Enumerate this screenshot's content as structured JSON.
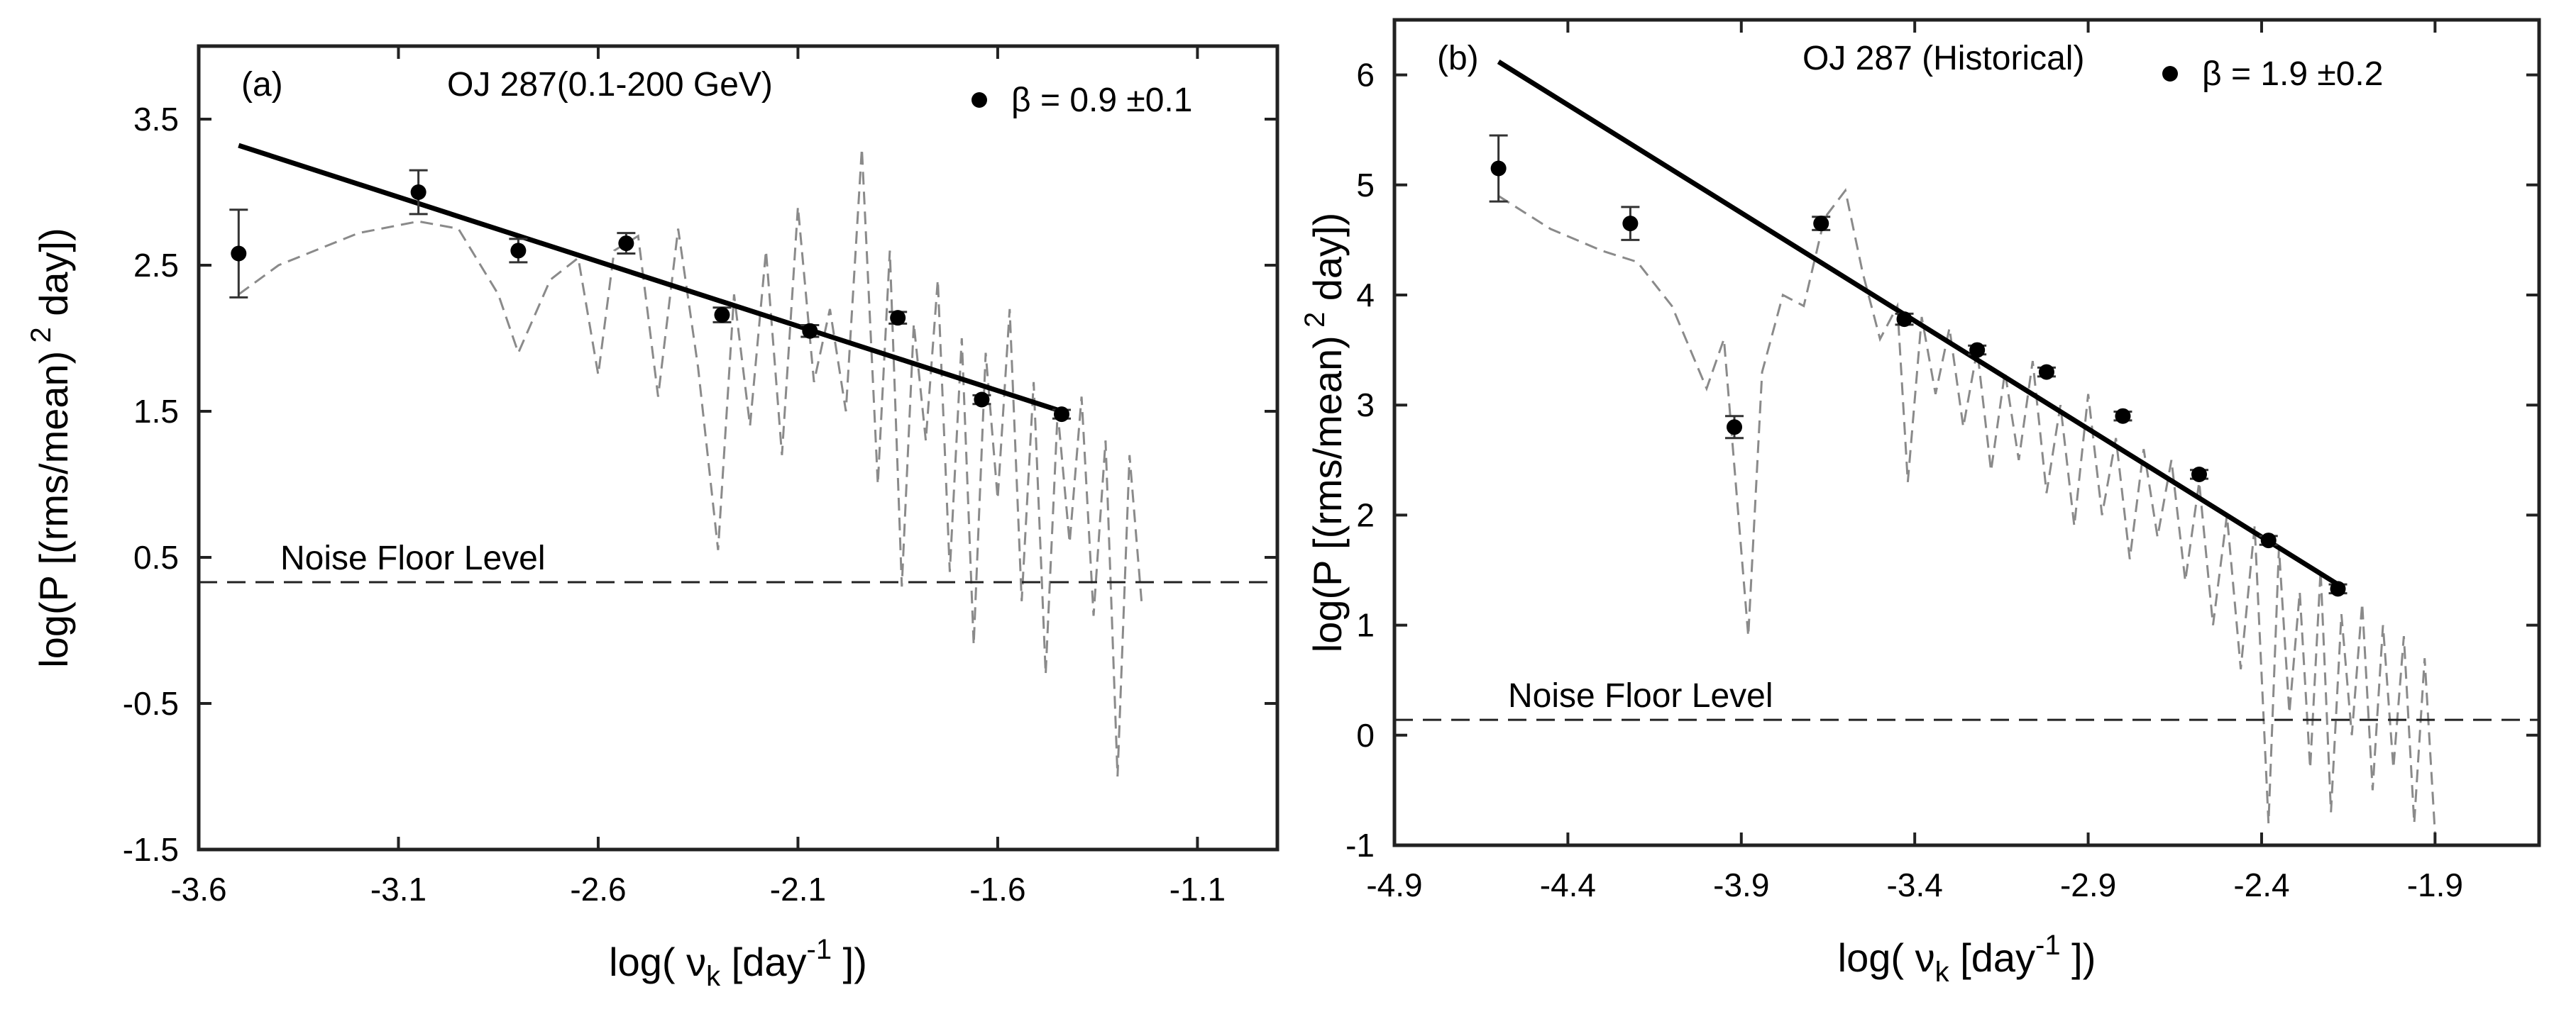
{
  "chart_data": [
    {
      "type": "scatter",
      "panel_label": "(a)",
      "title": "OJ 287(0.1-200 GeV)",
      "legend": {
        "beta_label": "β = 0.9  ±0.1",
        "placement": "top-right"
      },
      "xlabel": "log( ν",
      "xlabel_sub": "k",
      "xlabel_unit": " [day",
      "xlabel_exp": "-1",
      "xlabel_close": " ])",
      "ylabel": "log(P [(rms/mean)",
      "ylabel_exp": "2",
      "ylabel_close": " day])",
      "xlim": [
        -3.6,
        -0.9
      ],
      "ylim": [
        -1.5,
        4.0
      ],
      "xticks": [
        "-3.6",
        "-3.1",
        "-2.6",
        "-2.1",
        "-1.6",
        "-1.1"
      ],
      "yticks": [
        "-1.5",
        "-0.5",
        "0.5",
        "1.5",
        "2.5",
        "3.5"
      ],
      "points": {
        "x": [
          -3.5,
          -3.05,
          -2.8,
          -2.53,
          -2.29,
          -2.07,
          -1.85,
          -1.64,
          -1.44
        ],
        "y": [
          2.58,
          3.0,
          2.6,
          2.65,
          2.16,
          2.05,
          2.14,
          1.58,
          1.48
        ],
        "err": [
          0.3,
          0.15,
          0.08,
          0.07,
          0.05,
          0.04,
          0.04,
          0.03,
          0.03
        ]
      },
      "fit_line": {
        "x": [
          -3.5,
          -1.44
        ],
        "y": [
          3.32,
          1.5
        ]
      },
      "noise_floor": {
        "label": "Noise Floor Level",
        "y": 0.33
      },
      "simulated_psd": {
        "x": [
          -3.5,
          -3.4,
          -3.2,
          -3.05,
          -2.95,
          -2.85,
          -2.8,
          -2.72,
          -2.65,
          -2.6,
          -2.56,
          -2.5,
          -2.45,
          -2.4,
          -2.35,
          -2.3,
          -2.26,
          -2.22,
          -2.18,
          -2.14,
          -2.1,
          -2.06,
          -2.02,
          -1.98,
          -1.94,
          -1.9,
          -1.87,
          -1.84,
          -1.81,
          -1.78,
          -1.75,
          -1.72,
          -1.69,
          -1.66,
          -1.63,
          -1.6,
          -1.57,
          -1.54,
          -1.51,
          -1.48,
          -1.45,
          -1.42,
          -1.39,
          -1.36,
          -1.33,
          -1.3,
          -1.27,
          -1.24
        ],
        "y": [
          2.3,
          2.5,
          2.72,
          2.8,
          2.75,
          2.3,
          1.9,
          2.4,
          2.55,
          1.75,
          2.6,
          2.7,
          1.6,
          2.75,
          1.8,
          0.55,
          2.3,
          1.4,
          2.6,
          1.2,
          2.9,
          1.7,
          2.2,
          1.5,
          3.3,
          1.0,
          2.6,
          0.3,
          2.1,
          1.3,
          2.4,
          0.4,
          2.0,
          -0.1,
          1.9,
          0.9,
          2.2,
          0.2,
          1.7,
          -0.3,
          1.5,
          0.6,
          1.6,
          0.1,
          1.3,
          -1.0,
          1.2,
          0.2
        ]
      }
    },
    {
      "type": "scatter",
      "panel_label": "(b)",
      "title": "OJ 287 (Historical)",
      "legend": {
        "beta_label": "β = 1.9  ±0.2",
        "placement": "top-right"
      },
      "xlabel": "log( ν",
      "xlabel_sub": "k",
      "xlabel_unit": " [day",
      "xlabel_exp": "-1",
      "xlabel_close": " ])",
      "ylabel": "log(P [(rms/mean)",
      "ylabel_exp": "2",
      "ylabel_close": " day])",
      "xlim": [
        -4.9,
        -1.6
      ],
      "ylim": [
        -1,
        6.5
      ],
      "xticks": [
        "-4.9",
        "-4.4",
        "-3.9",
        "-3.4",
        "-2.9",
        "-2.4",
        "-1.9"
      ],
      "yticks": [
        "-1",
        "0",
        "1",
        "2",
        "3",
        "4",
        "5",
        "6"
      ],
      "points": {
        "x": [
          -4.6,
          -4.22,
          -3.92,
          -3.67,
          -3.43,
          -3.22,
          -3.02,
          -2.8,
          -2.58,
          -2.38,
          -2.18
        ],
        "y": [
          5.15,
          4.65,
          2.8,
          4.65,
          3.78,
          3.5,
          3.3,
          2.9,
          2.37,
          1.77,
          1.33
        ],
        "err": [
          0.3,
          0.15,
          0.1,
          0.06,
          0.05,
          0.04,
          0.04,
          0.04,
          0.04,
          0.04,
          0.04
        ]
      },
      "fit_line": {
        "x": [
          -4.6,
          -2.18
        ],
        "y": [
          6.12,
          1.37
        ]
      },
      "noise_floor": {
        "label": "Noise Floor Level",
        "y": 0.14
      },
      "simulated_psd": {
        "x": [
          -4.6,
          -4.45,
          -4.3,
          -4.2,
          -4.1,
          -4.0,
          -3.95,
          -3.88,
          -3.84,
          -3.78,
          -3.72,
          -3.66,
          -3.6,
          -3.55,
          -3.5,
          -3.45,
          -3.42,
          -3.38,
          -3.34,
          -3.3,
          -3.26,
          -3.22,
          -3.18,
          -3.14,
          -3.1,
          -3.06,
          -3.02,
          -2.98,
          -2.94,
          -2.9,
          -2.86,
          -2.82,
          -2.78,
          -2.74,
          -2.7,
          -2.66,
          -2.62,
          -2.58,
          -2.54,
          -2.5,
          -2.46,
          -2.42,
          -2.38,
          -2.35,
          -2.32,
          -2.29,
          -2.26,
          -2.23,
          -2.2,
          -2.17,
          -2.14,
          -2.11,
          -2.08,
          -2.05,
          -2.02,
          -1.99,
          -1.96,
          -1.93,
          -1.9
        ],
        "y": [
          4.9,
          4.6,
          4.4,
          4.3,
          3.9,
          3.15,
          3.6,
          0.9,
          3.3,
          4.0,
          3.9,
          4.7,
          4.95,
          4.2,
          3.6,
          3.9,
          2.3,
          3.8,
          3.1,
          3.7,
          2.8,
          3.5,
          2.4,
          3.3,
          2.5,
          3.4,
          2.2,
          3.0,
          1.9,
          3.1,
          2.0,
          2.7,
          1.6,
          2.6,
          1.8,
          2.5,
          1.4,
          2.3,
          1.0,
          2.0,
          0.6,
          1.9,
          -0.8,
          1.7,
          0.2,
          1.3,
          -0.3,
          1.5,
          -0.7,
          1.1,
          0.0,
          1.2,
          -0.5,
          1.0,
          -0.3,
          0.9,
          -0.8,
          0.7,
          -0.9
        ]
      }
    }
  ]
}
